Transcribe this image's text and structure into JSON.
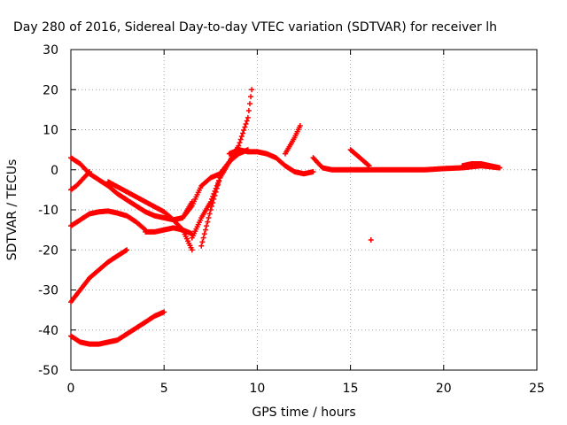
{
  "chart_data": {
    "type": "scatter",
    "title": "Day 280 of 2016, Sidereal Day-to-day VTEC variation (SDTVAR) for receiver lh",
    "xlabel": "GPS time / hours",
    "ylabel": "SDTVAR / TECUs",
    "xlim": [
      0,
      25
    ],
    "ylim": [
      -50,
      30
    ],
    "xticks": [
      0,
      5,
      10,
      15,
      20,
      25
    ],
    "yticks": [
      -50,
      -40,
      -30,
      -20,
      -10,
      0,
      10,
      20,
      30
    ],
    "grid": true,
    "marker": "+",
    "color": "#ff0000",
    "series": [
      {
        "x": [
          0,
          0.5,
          1,
          1.5,
          2,
          2.5,
          3,
          3.5,
          4,
          4.5,
          5,
          5.5,
          6,
          6.5
        ],
        "y": [
          3,
          1.5,
          -1,
          -2.5,
          -4,
          -6,
          -7.5,
          -9,
          -10.5,
          -11.5,
          -12,
          -12.5,
          -12,
          -8
        ]
      },
      {
        "x": [
          0,
          0.3,
          0.7,
          1
        ],
        "y": [
          -5,
          -4,
          -2,
          -0.5
        ]
      },
      {
        "x": [
          0,
          0.5,
          1,
          1.5,
          2,
          2.5,
          3,
          3.5,
          4
        ],
        "y": [
          -14,
          -12.5,
          -11,
          -10.5,
          -10.3,
          -10.8,
          -11.5,
          -13,
          -15
        ]
      },
      {
        "x": [
          4,
          4.5,
          5,
          5.5,
          6,
          6.5
        ],
        "y": [
          -15.5,
          -15.5,
          -15,
          -14.5,
          -15,
          -16
        ]
      },
      {
        "x": [
          0,
          0.5,
          1,
          1.5,
          2,
          2.5,
          3
        ],
        "y": [
          -33,
          -30,
          -27,
          -25,
          -23,
          -21.5,
          -20
        ]
      },
      {
        "x": [
          0,
          0.5,
          1,
          1.5,
          2,
          2.5,
          3,
          3.5,
          4,
          4.5,
          5
        ],
        "y": [
          -41.5,
          -43,
          -43.5,
          -43.5,
          -43,
          -42.5,
          -41,
          -39.5,
          -38,
          -36.5,
          -35.5
        ]
      },
      {
        "x": [
          2,
          3,
          4,
          5,
          5.5,
          6,
          6.5
        ],
        "y": [
          -3,
          -5.5,
          -8,
          -10.5,
          -12.5,
          -15,
          -20
        ]
      },
      {
        "x": [
          6,
          6.5,
          7,
          7.5,
          8,
          8.5,
          9,
          9.5,
          9.7
        ],
        "y": [
          -12,
          -9,
          -4,
          -2,
          -1,
          2,
          6,
          13,
          20
        ]
      },
      {
        "x": [
          6.5,
          7,
          7.5,
          8,
          8.5,
          9
        ],
        "y": [
          -17,
          -12,
          -8,
          -2,
          2,
          5
        ]
      },
      {
        "x": [
          7,
          7.5,
          8,
          8.5,
          9,
          9.5
        ],
        "y": [
          -19,
          -10,
          -2,
          2,
          4,
          5
        ]
      },
      {
        "x": [
          8.5,
          9,
          9.5,
          10,
          10.5,
          11,
          11.5,
          12,
          12.5,
          13
        ],
        "y": [
          4,
          5,
          4.5,
          4.5,
          4,
          3,
          1,
          -0.5,
          -1,
          -0.5
        ]
      },
      {
        "x": [
          11.5,
          12,
          12.3
        ],
        "y": [
          4,
          8,
          11
        ]
      },
      {
        "x": [
          13,
          13.5,
          14,
          14.5,
          15,
          15.5,
          16,
          17,
          18,
          19,
          20,
          21,
          22,
          23
        ],
        "y": [
          3,
          0.5,
          0,
          0,
          0,
          0,
          0,
          0,
          0,
          0,
          0.3,
          0.5,
          1,
          0.5
        ]
      },
      {
        "x": [
          15,
          15.5,
          16
        ],
        "y": [
          5,
          3,
          1
        ]
      },
      {
        "x": [
          21,
          21.5,
          22,
          22.5,
          23
        ],
        "y": [
          1,
          1.5,
          1.5,
          1,
          0.5
        ]
      },
      {
        "x": [
          16.1
        ],
        "y": [
          -17.5
        ]
      }
    ]
  }
}
